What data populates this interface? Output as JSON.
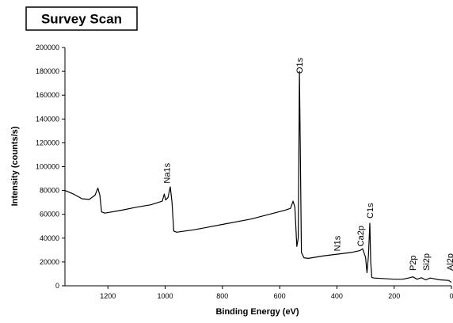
{
  "chart_data": {
    "type": "line",
    "title": "Survey Scan",
    "x_label": "Binding Energy (eV)",
    "y_label": "Intensity (counts/s)",
    "x": [
      1350,
      1320,
      1290,
      1265,
      1245,
      1235,
      1228,
      1222,
      1210,
      1150,
      1100,
      1050,
      1010,
      1003,
      998,
      990,
      982,
      976,
      970,
      960,
      900,
      800,
      700,
      620,
      580,
      562,
      553,
      547,
      540,
      535,
      531,
      528,
      524,
      515,
      500,
      450,
      400,
      350,
      320,
      310,
      300,
      295,
      290,
      285,
      282,
      278,
      270,
      200,
      170,
      150,
      135,
      120,
      105,
      90,
      74,
      40,
      10,
      0
    ],
    "values": [
      80000,
      77000,
      73000,
      72500,
      76000,
      82000,
      76000,
      62000,
      61000,
      63500,
      66000,
      68000,
      71000,
      77000,
      72000,
      74000,
      83000,
      70000,
      46000,
      45000,
      47000,
      51500,
      56000,
      61000,
      63500,
      65000,
      71000,
      66000,
      33000,
      40000,
      180000,
      120000,
      28000,
      23500,
      23000,
      25000,
      26500,
      28000,
      29500,
      31000,
      24000,
      11000,
      25000,
      52500,
      20000,
      7000,
      6500,
      5500,
      5500,
      6500,
      7500,
      5500,
      6800,
      5000,
      6500,
      5000,
      4500,
      3000
    ],
    "color": "#000000",
    "xlim": [
      1350,
      0
    ],
    "ylim": [
      0,
      200000
    ],
    "xticks": [
      1200,
      1000,
      800,
      600,
      400,
      200,
      0
    ],
    "yticks": [
      0,
      20000,
      40000,
      60000,
      80000,
      100000,
      120000,
      140000,
      160000,
      180000,
      200000
    ],
    "annotations": [
      {
        "text": "O1s",
        "x": 531,
        "y": 178000
      },
      {
        "text": "Na1s",
        "x": 995,
        "y": 86000
      },
      {
        "text": "N1s",
        "x": 400,
        "y": 29000
      },
      {
        "text": "Ca2p",
        "x": 318,
        "y": 33000
      },
      {
        "text": "C1s",
        "x": 285,
        "y": 56500
      },
      {
        "text": "P2p",
        "x": 135,
        "y": 12600
      },
      {
        "text": "Si2p",
        "x": 88,
        "y": 12600
      },
      {
        "text": "Al2p",
        "x": 6,
        "y": 12600
      }
    ]
  }
}
